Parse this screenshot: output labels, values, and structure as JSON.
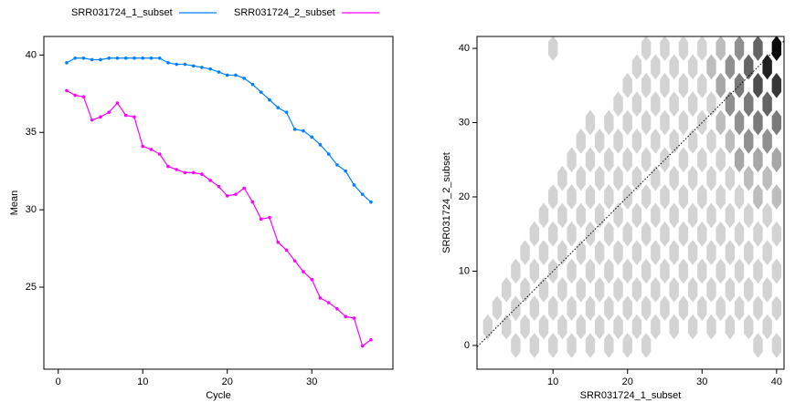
{
  "chart_data": [
    {
      "type": "line",
      "xlabel": "Cycle",
      "ylabel": "Mean",
      "x": [
        1,
        2,
        3,
        4,
        5,
        6,
        7,
        8,
        9,
        10,
        11,
        12,
        13,
        14,
        15,
        16,
        17,
        18,
        19,
        20,
        21,
        22,
        23,
        24,
        25,
        26,
        27,
        28,
        29,
        30,
        31,
        32,
        33,
        34,
        35,
        36,
        37
      ],
      "series": [
        {
          "name": "SRR031724_1_subset",
          "color": "#0080ff",
          "values": [
            39.5,
            39.8,
            39.8,
            39.7,
            39.7,
            39.8,
            39.8,
            39.8,
            39.8,
            39.8,
            39.8,
            39.8,
            39.5,
            39.4,
            39.4,
            39.3,
            39.2,
            39.1,
            38.9,
            38.7,
            38.7,
            38.5,
            38.1,
            37.6,
            37.1,
            36.6,
            36.3,
            35.2,
            35.1,
            34.7,
            34.2,
            33.6,
            32.9,
            32.5,
            31.6,
            31.0,
            30.5
          ]
        },
        {
          "name": "SRR031724_2_subset",
          "color": "#ff00ff",
          "values": [
            37.7,
            37.4,
            37.3,
            35.8,
            36.0,
            36.3,
            36.9,
            36.1,
            36.0,
            34.1,
            33.9,
            33.6,
            32.8,
            32.6,
            32.4,
            32.4,
            32.3,
            31.9,
            31.5,
            30.9,
            31.0,
            31.4,
            30.5,
            29.4,
            29.5,
            27.9,
            27.4,
            26.7,
            26.0,
            25.5,
            24.3,
            24.0,
            23.6,
            23.1,
            23.0,
            21.2,
            21.6
          ]
        }
      ],
      "xlim": [
        -1.7,
        39.6
      ],
      "xticks": [
        0,
        10,
        20,
        30
      ],
      "ylim": [
        19.7,
        41.2
      ],
      "yticks": [
        25,
        30,
        35,
        40
      ]
    },
    {
      "type": "hexbin",
      "xlabel": "SRR031724_1_subset",
      "ylabel": "SRR031724_2_subset",
      "xlim": [
        -0.2,
        41
      ],
      "xticks": [
        10,
        20,
        30,
        40
      ],
      "ylim": [
        -3.2,
        41.6
      ],
      "yticks": [
        0,
        10,
        20,
        30,
        40
      ],
      "reference_line": true,
      "cells": [
        [
          5,
          0,
          1
        ],
        [
          7.5,
          0,
          1
        ],
        [
          10,
          0,
          1
        ],
        [
          12.5,
          0,
          1
        ],
        [
          15,
          0,
          1
        ],
        [
          17.5,
          0,
          1
        ],
        [
          20,
          0,
          1
        ],
        [
          22.5,
          0,
          1
        ],
        [
          37.5,
          0,
          1
        ],
        [
          40,
          0,
          1
        ],
        [
          1.25,
          2.5,
          1
        ],
        [
          3.75,
          2.5,
          1
        ],
        [
          6.25,
          2.5,
          1
        ],
        [
          8.75,
          2.5,
          1
        ],
        [
          11.25,
          2.5,
          1
        ],
        [
          13.75,
          2.5,
          1
        ],
        [
          16.25,
          2.5,
          1
        ],
        [
          18.75,
          2.5,
          1
        ],
        [
          21.25,
          2.5,
          1
        ],
        [
          23.75,
          2.5,
          1
        ],
        [
          26.25,
          2.5,
          1
        ],
        [
          28.75,
          2.5,
          1
        ],
        [
          31.25,
          2.5,
          1
        ],
        [
          33.75,
          2.5,
          1
        ],
        [
          36.25,
          2.5,
          1
        ],
        [
          38.75,
          2.5,
          1
        ],
        [
          2.5,
          5,
          1
        ],
        [
          5,
          5,
          1
        ],
        [
          7.5,
          5,
          1
        ],
        [
          10,
          5,
          1
        ],
        [
          12.5,
          5,
          1
        ],
        [
          15,
          5,
          1
        ],
        [
          17.5,
          5,
          1
        ],
        [
          20,
          5,
          1
        ],
        [
          22.5,
          5,
          1
        ],
        [
          25,
          5,
          1
        ],
        [
          27.5,
          5,
          1
        ],
        [
          30,
          5,
          1
        ],
        [
          32.5,
          5,
          1
        ],
        [
          35,
          5,
          1
        ],
        [
          37.5,
          5,
          1
        ],
        [
          40,
          5,
          1
        ],
        [
          3.75,
          7.5,
          1
        ],
        [
          6.25,
          7.5,
          1
        ],
        [
          8.75,
          7.5,
          1
        ],
        [
          11.25,
          7.5,
          1
        ],
        [
          13.75,
          7.5,
          1
        ],
        [
          16.25,
          7.5,
          1
        ],
        [
          18.75,
          7.5,
          1
        ],
        [
          21.25,
          7.5,
          1
        ],
        [
          23.75,
          7.5,
          1
        ],
        [
          26.25,
          7.5,
          1
        ],
        [
          28.75,
          7.5,
          1
        ],
        [
          31.25,
          7.5,
          1
        ],
        [
          33.75,
          7.5,
          1
        ],
        [
          36.25,
          7.5,
          1
        ],
        [
          38.75,
          7.5,
          1
        ],
        [
          5,
          10,
          1
        ],
        [
          7.5,
          10,
          1
        ],
        [
          10,
          10,
          1
        ],
        [
          12.5,
          10,
          1
        ],
        [
          15,
          10,
          1
        ],
        [
          17.5,
          10,
          1
        ],
        [
          20,
          10,
          1
        ],
        [
          22.5,
          10,
          1
        ],
        [
          25,
          10,
          1
        ],
        [
          27.5,
          10,
          1
        ],
        [
          30,
          10,
          1
        ],
        [
          32.5,
          10,
          1
        ],
        [
          35,
          10,
          1
        ],
        [
          37.5,
          10,
          1
        ],
        [
          40,
          10,
          1
        ],
        [
          6.25,
          12.5,
          1
        ],
        [
          8.75,
          12.5,
          1
        ],
        [
          11.25,
          12.5,
          1
        ],
        [
          13.75,
          12.5,
          1
        ],
        [
          16.25,
          12.5,
          1
        ],
        [
          18.75,
          12.5,
          1
        ],
        [
          21.25,
          12.5,
          1
        ],
        [
          23.75,
          12.5,
          1
        ],
        [
          26.25,
          12.5,
          1
        ],
        [
          28.75,
          12.5,
          1
        ],
        [
          31.25,
          12.5,
          1
        ],
        [
          33.75,
          12.5,
          1
        ],
        [
          36.25,
          12.5,
          1
        ],
        [
          38.75,
          12.5,
          1
        ],
        [
          7.5,
          15,
          1
        ],
        [
          10,
          15,
          1
        ],
        [
          12.5,
          15,
          1
        ],
        [
          15,
          15,
          1
        ],
        [
          17.5,
          15,
          1
        ],
        [
          20,
          15,
          1
        ],
        [
          22.5,
          15,
          1
        ],
        [
          25,
          15,
          1
        ],
        [
          27.5,
          15,
          1
        ],
        [
          30,
          15,
          1
        ],
        [
          32.5,
          15,
          1
        ],
        [
          35,
          15,
          1
        ],
        [
          37.5,
          15,
          1
        ],
        [
          40,
          15,
          1
        ],
        [
          8.75,
          17.5,
          1
        ],
        [
          11.25,
          17.5,
          1
        ],
        [
          13.75,
          17.5,
          1
        ],
        [
          16.25,
          17.5,
          1
        ],
        [
          18.75,
          17.5,
          1
        ],
        [
          21.25,
          17.5,
          1
        ],
        [
          23.75,
          17.5,
          1
        ],
        [
          26.25,
          17.5,
          1
        ],
        [
          28.75,
          17.5,
          1
        ],
        [
          31.25,
          17.5,
          1
        ],
        [
          33.75,
          17.5,
          1
        ],
        [
          36.25,
          17.5,
          1
        ],
        [
          38.75,
          17.5,
          1
        ],
        [
          10,
          20,
          1
        ],
        [
          12.5,
          20,
          1
        ],
        [
          15,
          20,
          1
        ],
        [
          17.5,
          20,
          1
        ],
        [
          20,
          20,
          1
        ],
        [
          22.5,
          20,
          1
        ],
        [
          25,
          20,
          1
        ],
        [
          27.5,
          20,
          1
        ],
        [
          30,
          20,
          1
        ],
        [
          32.5,
          20,
          1
        ],
        [
          35,
          20,
          1
        ],
        [
          37.5,
          20,
          2
        ],
        [
          40,
          20,
          2
        ],
        [
          11.25,
          22.5,
          1
        ],
        [
          13.75,
          22.5,
          1
        ],
        [
          16.25,
          22.5,
          1
        ],
        [
          18.75,
          22.5,
          1
        ],
        [
          21.25,
          22.5,
          1
        ],
        [
          23.75,
          22.5,
          1
        ],
        [
          26.25,
          22.5,
          1
        ],
        [
          28.75,
          22.5,
          1
        ],
        [
          31.25,
          22.5,
          1
        ],
        [
          33.75,
          22.5,
          1
        ],
        [
          36.25,
          22.5,
          2
        ],
        [
          38.75,
          22.5,
          2
        ],
        [
          12.5,
          25,
          1
        ],
        [
          15,
          25,
          1
        ],
        [
          17.5,
          25,
          1
        ],
        [
          20,
          25,
          1
        ],
        [
          22.5,
          25,
          1
        ],
        [
          25,
          25,
          1
        ],
        [
          27.5,
          25,
          1
        ],
        [
          30,
          25,
          1
        ],
        [
          32.5,
          25,
          1
        ],
        [
          35,
          25,
          3
        ],
        [
          37.5,
          25,
          3
        ],
        [
          40,
          25,
          3
        ],
        [
          13.75,
          27.5,
          1
        ],
        [
          16.25,
          27.5,
          1
        ],
        [
          18.75,
          27.5,
          1
        ],
        [
          21.25,
          27.5,
          1
        ],
        [
          23.75,
          27.5,
          1
        ],
        [
          26.25,
          27.5,
          1
        ],
        [
          28.75,
          27.5,
          1
        ],
        [
          31.25,
          27.5,
          1
        ],
        [
          33.75,
          27.5,
          2
        ],
        [
          36.25,
          27.5,
          4
        ],
        [
          38.75,
          27.5,
          4
        ],
        [
          15,
          30,
          1
        ],
        [
          17.5,
          30,
          1
        ],
        [
          20,
          30,
          1
        ],
        [
          22.5,
          30,
          1
        ],
        [
          25,
          30,
          1
        ],
        [
          27.5,
          30,
          1
        ],
        [
          30,
          30,
          1
        ],
        [
          32.5,
          30,
          2
        ],
        [
          35,
          30,
          4
        ],
        [
          37.5,
          30,
          5
        ],
        [
          40,
          30,
          5
        ],
        [
          18.75,
          32.5,
          1
        ],
        [
          21.25,
          32.5,
          1
        ],
        [
          23.75,
          32.5,
          1
        ],
        [
          26.25,
          32.5,
          1
        ],
        [
          28.75,
          32.5,
          1
        ],
        [
          31.25,
          32.5,
          1
        ],
        [
          33.75,
          32.5,
          4
        ],
        [
          36.25,
          32.5,
          5
        ],
        [
          38.75,
          32.5,
          6
        ],
        [
          20,
          35,
          1
        ],
        [
          22.5,
          35,
          1
        ],
        [
          25,
          35,
          1
        ],
        [
          27.5,
          35,
          1
        ],
        [
          30,
          35,
          1
        ],
        [
          32.5,
          35,
          3
        ],
        [
          35,
          35,
          5
        ],
        [
          37.5,
          35,
          7
        ],
        [
          40,
          35,
          8
        ],
        [
          21.25,
          37.5,
          1
        ],
        [
          23.75,
          37.5,
          1
        ],
        [
          26.25,
          37.5,
          1
        ],
        [
          28.75,
          37.5,
          1
        ],
        [
          31.25,
          37.5,
          2
        ],
        [
          33.75,
          37.5,
          4
        ],
        [
          36.25,
          37.5,
          6
        ],
        [
          38.75,
          37.5,
          9
        ],
        [
          10,
          40,
          1
        ],
        [
          22.5,
          40,
          1
        ],
        [
          25,
          40,
          1
        ],
        [
          27.5,
          40,
          1
        ],
        [
          30,
          40,
          1
        ],
        [
          32.5,
          40,
          2
        ],
        [
          35,
          40,
          4
        ],
        [
          37.5,
          40,
          6
        ],
        [
          40,
          40,
          10
        ]
      ]
    }
  ]
}
